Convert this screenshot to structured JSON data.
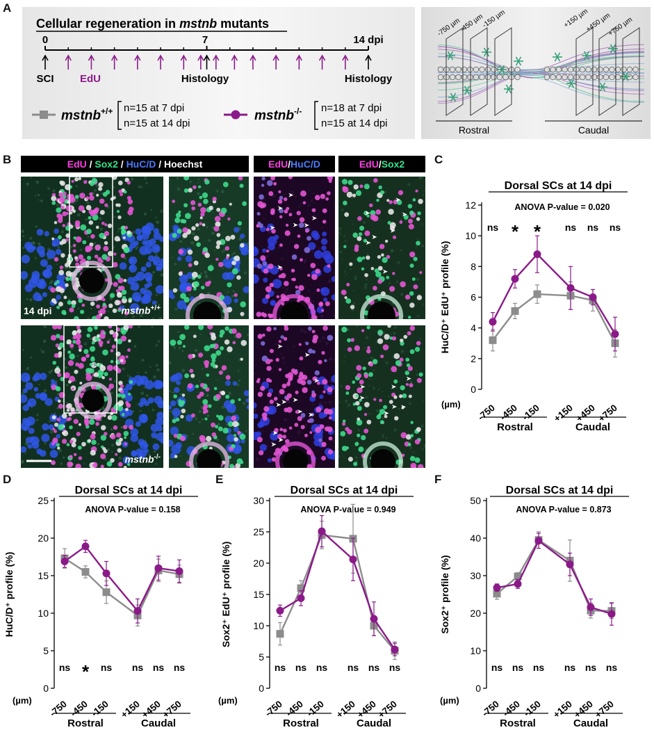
{
  "panel_labels": {
    "A": "A",
    "B": "B",
    "C": "C",
    "D": "D",
    "E": "E",
    "F": "F"
  },
  "panelA": {
    "title_prefix": "Cellular regeneration in ",
    "title_gene": "mstnb",
    "title_suffix": " mutants",
    "tick_0": "0",
    "tick_7": "7",
    "tick_14": "14 dpi",
    "sci": "SCI",
    "edu": "EdU",
    "histology": "Histology",
    "wt_label": "mstnb",
    "wt_sup": "+/+",
    "wt_n1": "n=15  at  7 dpi",
    "wt_n2": "n=15  at  14 dpi",
    "mut_label": "mstnb",
    "mut_sup": "-/-",
    "mut_n1": "n=18  at  7 dpi",
    "mut_n2": "n=15  at  14 dpi",
    "schem_rostral": "Rostral",
    "schem_caudal": "Caudal",
    "schem_pos": [
      "-750 µm",
      "-450 µm",
      "-150 µm",
      "+150 µm",
      "+450 µm",
      "+750 µm"
    ]
  },
  "panelB": {
    "h_edu": "EdU",
    "h_sep": " / ",
    "h_sox2": "Sox2",
    "h_huc": "HuC/D",
    "h_hoechst": "Hoechst",
    "h2_edu": "EdU",
    "h2_slash": "/",
    "h2_huc": "HuC/D",
    "h3_edu": "EdU",
    "h3_slash": "/",
    "h3_sox2": "Sox2",
    "time": "14 dpi",
    "wt_geno": "mstnb",
    "wt_sup": "+/+",
    "mut_geno": "mstnb",
    "mut_sup": "-/-"
  },
  "colors": {
    "wt": "#8c8c8c",
    "mut": "#8b1a89",
    "magenta": "#ff3ce6",
    "green": "#32e68c",
    "blue": "#4b7bff"
  },
  "chart_data": [
    {
      "id": "C",
      "type": "line",
      "title": "Dorsal SCs at 14 dpi",
      "annotation": "ANOVA P-value = 0.020",
      "ylabel": "HuC/D⁺ EdU⁺ profile (%)",
      "xunit": "(µm)",
      "ylim": [
        0,
        12
      ],
      "yticks": [
        0,
        2,
        4,
        6,
        8,
        10,
        12
      ],
      "categories": [
        "-750",
        "-450",
        "-150",
        "+150",
        "+450",
        "+750"
      ],
      "groups": [
        "Rostral",
        "Caudal"
      ],
      "sig": [
        "ns",
        "*",
        "*",
        "ns",
        "ns",
        "ns"
      ],
      "series": [
        {
          "name": "mstnb+/+",
          "values": [
            3.2,
            5.1,
            6.2,
            6.1,
            5.8,
            3.0
          ],
          "err": [
            0.7,
            0.5,
            0.6,
            0.9,
            0.7,
            0.9
          ]
        },
        {
          "name": "mstnb-/-",
          "values": [
            4.4,
            7.2,
            8.8,
            6.6,
            6.0,
            3.6
          ],
          "err": [
            0.6,
            0.6,
            1.2,
            1.4,
            0.5,
            1.1
          ]
        }
      ]
    },
    {
      "id": "D",
      "type": "line",
      "title": "Dorsal SCs at 14 dpi",
      "annotation": "ANOVA P-value = 0.158",
      "ylabel": "HuC/D⁺ profile (%)",
      "xunit": "(µm)",
      "ylim": [
        0,
        25
      ],
      "yticks": [
        0,
        5,
        10,
        15,
        20,
        25
      ],
      "categories": [
        "-750",
        "-450",
        "-150",
        "+150",
        "+450",
        "+750"
      ],
      "groups": [
        "Rostral",
        "Caudal"
      ],
      "sig": [
        "ns",
        "*",
        "ns",
        "ns",
        "ns",
        "ns"
      ],
      "series": [
        {
          "name": "mstnb+/+",
          "values": [
            17.3,
            15.5,
            12.8,
            9.7,
            15.7,
            15.2
          ],
          "err": [
            1.3,
            0.8,
            1.5,
            1.4,
            1.5,
            1.2
          ]
        },
        {
          "name": "mstnb-/-",
          "values": [
            16.9,
            18.9,
            15.3,
            10.3,
            16.0,
            15.6
          ],
          "err": [
            0.8,
            0.8,
            1.6,
            1.6,
            1.6,
            1.5
          ]
        }
      ]
    },
    {
      "id": "E",
      "type": "line",
      "title": "Dorsal SCs at 14 dpi",
      "annotation": "ANOVA P-value = 0.949",
      "ylabel": "Sox2⁺ EdU⁺ profile (%)",
      "xunit": "(µm)",
      "ylim": [
        0,
        30
      ],
      "yticks": [
        0,
        5,
        10,
        15,
        20,
        25,
        30
      ],
      "categories": [
        "-750",
        "-450",
        "-150",
        "+150",
        "+450",
        "+750"
      ],
      "groups": [
        "Rostral",
        "Caudal"
      ],
      "sig": [
        "ns",
        "ns",
        "ns",
        "ns",
        "ns",
        "ns"
      ],
      "series": [
        {
          "name": "mstnb+/+",
          "values": [
            8.7,
            16.0,
            24.5,
            23.9,
            10.0,
            6.0
          ],
          "err": [
            1.8,
            1.2,
            2.2,
            5.5,
            1.6,
            1.4
          ]
        },
        {
          "name": "mstnb-/-",
          "values": [
            12.4,
            14.4,
            25.1,
            20.6,
            11.1,
            6.2
          ],
          "err": [
            0.9,
            1.2,
            2.5,
            3.4,
            2.7,
            1.0
          ]
        }
      ]
    },
    {
      "id": "F",
      "type": "line",
      "title": "Dorsal SCs at 14 dpi",
      "annotation": "ANOVA P-value = 0.873",
      "ylabel": "Sox2⁺ profile (%)",
      "xunit": "(µm)",
      "ylim": [
        0,
        50
      ],
      "yticks": [
        0,
        10,
        20,
        30,
        40,
        50
      ],
      "categories": [
        "-750",
        "-450",
        "-150",
        "+150",
        "+450",
        "+750"
      ],
      "groups": [
        "Rostral",
        "Caudal"
      ],
      "sig": [
        "ns",
        "ns",
        "ns",
        "ns",
        "ns",
        "ns"
      ],
      "series": [
        {
          "name": "mstnb+/+",
          "values": [
            25.2,
            29.8,
            39.5,
            34.0,
            20.7,
            20.6
          ],
          "err": [
            1.5,
            1.0,
            2.2,
            5.5,
            2.0,
            2.0
          ]
        },
        {
          "name": "mstnb-/-",
          "values": [
            26.8,
            27.8,
            39.3,
            33.0,
            21.6,
            19.8
          ],
          "err": [
            1.0,
            1.2,
            2.0,
            3.0,
            2.2,
            3.0
          ]
        }
      ]
    }
  ]
}
